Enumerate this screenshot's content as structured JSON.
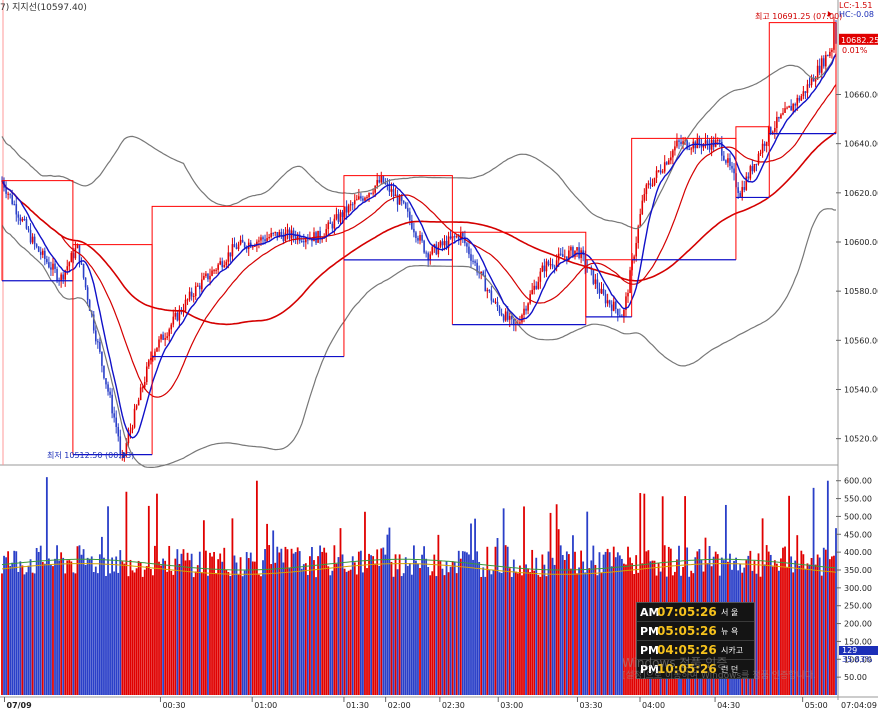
{
  "header": {
    "label": "7)  지지선(10597.40)"
  },
  "chart_data": [
    {
      "type": "line",
      "title": "",
      "price_axis": {
        "ticks": [
          10660.0,
          10640.0,
          10620.0,
          10600.0,
          10580.0,
          10560.0,
          10540.0,
          10520.0
        ],
        "labels": [
          "10660.00",
          "10640.00",
          "10620.00",
          "10600.00",
          "10580.00",
          "10560.00",
          "10540.00",
          "10520.00"
        ]
      },
      "ylim": [
        10510.5,
        10696.0
      ],
      "time_axis": {
        "labels": [
          "07/09",
          "00:30",
          "01:00",
          "01:30",
          "02:00",
          "02:30",
          "03:00",
          "03:30",
          "04:00",
          "04:30",
          "05:00",
          "07:04:09"
        ]
      },
      "annotations": {
        "high": "최고 10691.25 (07:00)",
        "low": "최저 10512.50 (00:23)",
        "lc": "LC:-1.51",
        "hc": "HC:-0.08",
        "last_price": "10682.25",
        "last_pct": "0.01%"
      },
      "high_value": 10691.25,
      "low_value": 10512.5,
      "last_value": 10682.25,
      "series_summary": [
        {
          "t": 0.0,
          "close": 10625
        },
        {
          "t": 0.04,
          "close": 10598
        },
        {
          "t": 0.07,
          "close": 10585
        },
        {
          "t": 0.09,
          "close": 10598
        },
        {
          "t": 0.12,
          "close": 10550
        },
        {
          "t": 0.145,
          "close": 10513
        },
        {
          "t": 0.18,
          "close": 10555
        },
        {
          "t": 0.23,
          "close": 10580
        },
        {
          "t": 0.28,
          "close": 10598
        },
        {
          "t": 0.33,
          "close": 10603
        },
        {
          "t": 0.38,
          "close": 10602
        },
        {
          "t": 0.41,
          "close": 10612
        },
        {
          "t": 0.455,
          "close": 10625
        },
        {
          "t": 0.48,
          "close": 10615
        },
        {
          "t": 0.51,
          "close": 10595
        },
        {
          "t": 0.55,
          "close": 10603
        },
        {
          "t": 0.59,
          "close": 10575
        },
        {
          "t": 0.615,
          "close": 10565
        },
        {
          "t": 0.65,
          "close": 10590
        },
        {
          "t": 0.69,
          "close": 10597
        },
        {
          "t": 0.72,
          "close": 10578
        },
        {
          "t": 0.745,
          "close": 10570
        },
        {
          "t": 0.77,
          "close": 10620
        },
        {
          "t": 0.81,
          "close": 10640
        },
        {
          "t": 0.86,
          "close": 10640
        },
        {
          "t": 0.885,
          "close": 10620
        },
        {
          "t": 0.92,
          "close": 10645
        },
        {
          "t": 0.96,
          "close": 10660
        },
        {
          "t": 1.0,
          "close": 10682
        }
      ]
    },
    {
      "type": "bar",
      "title": "",
      "volume_axis": {
        "ticks": [
          600,
          550,
          500,
          450,
          400,
          350,
          300,
          250,
          200,
          150,
          100,
          50
        ],
        "labels": [
          "600.00",
          "550.00",
          "500.00",
          "450.00",
          "400.00",
          "350.00",
          "300.00",
          "250.00",
          "200.00",
          "150.00",
          "100.00",
          "50.00"
        ]
      },
      "ylim": [
        0,
        630
      ],
      "typical_range": [
        330,
        420
      ],
      "peaks": [
        610,
        600,
        580,
        570,
        560
      ],
      "side_labels": [
        "129",
        "35.83%"
      ]
    }
  ],
  "clock": {
    "rows": [
      {
        "ampm": "AM",
        "time": "07:05:26",
        "city": "서 울"
      },
      {
        "ampm": "PM",
        "time": "05:05:26",
        "city": "뉴 욕"
      },
      {
        "ampm": "PM",
        "time": "04:05:26",
        "city": "시카고"
      },
      {
        "ampm": "PM",
        "time": "10:05:26",
        "city": "런 던"
      }
    ]
  },
  "watermark": {
    "line1": "Windows 정품 인증",
    "line2": "[설정]으로 이동하여 Windows를 정품 인증합니다."
  },
  "colors": {
    "up": "#e00000",
    "down": "#2a3fc8",
    "ma_red": "#d40000",
    "ma_blue": "#1010c8",
    "band": "#777777",
    "accent_box": "#ff0000"
  }
}
